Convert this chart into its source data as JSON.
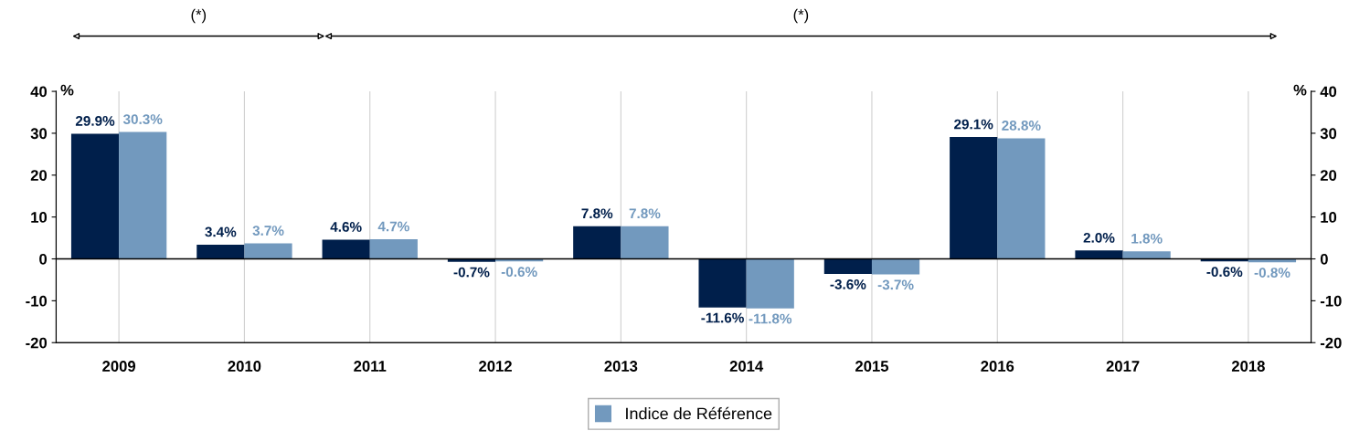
{
  "chart_data": {
    "type": "bar",
    "categories": [
      "2009",
      "2010",
      "2011",
      "2012",
      "2013",
      "2014",
      "2015",
      "2016",
      "2017",
      "2018"
    ],
    "series": [
      {
        "color": "#001f4b",
        "values": [
          29.9,
          3.4,
          4.6,
          -0.7,
          7.8,
          -11.6,
          -3.6,
          29.1,
          2.0,
          -0.6
        ],
        "value_labels": [
          "29.9%",
          "3.4%",
          "4.6%",
          "-0.7%",
          "7.8%",
          "-11.6%",
          "-3.6%",
          "29.1%",
          "2.0%",
          "-0.6%"
        ]
      },
      {
        "name": "Indice de Référence",
        "color": "#7299be",
        "values": [
          30.3,
          3.7,
          4.7,
          -0.6,
          7.8,
          -11.8,
          -3.7,
          28.8,
          1.8,
          -0.8
        ],
        "value_labels": [
          "30.3%",
          "3.7%",
          "4.7%",
          "-0.6%",
          "7.8%",
          "-11.8%",
          "-3.7%",
          "28.8%",
          "1.8%",
          "-0.8%"
        ]
      }
    ],
    "ylabel": "%",
    "y2label": "%",
    "ylim": [
      -20,
      40
    ],
    "yticks": [
      -20,
      -10,
      0,
      10,
      20,
      30,
      40
    ],
    "y2lim": [
      -20,
      40
    ],
    "y2ticks": [
      -20,
      -10,
      0,
      10,
      20,
      30,
      40
    ],
    "ref_lines": [
      {
        "axis": "y",
        "value": 0,
        "color": "#000000"
      }
    ],
    "annotations": [
      "(*)",
      "(*)"
    ],
    "grid": "x",
    "legend": "bottom"
  }
}
